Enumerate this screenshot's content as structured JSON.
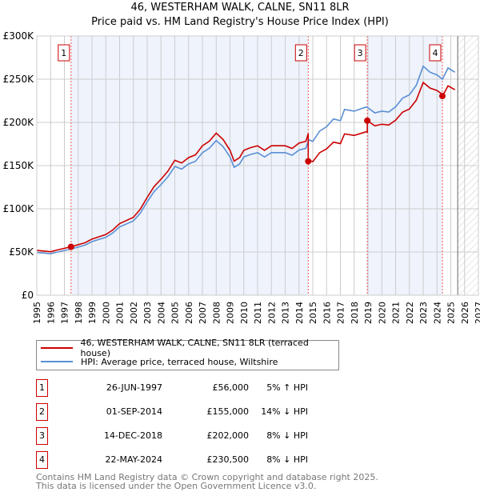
{
  "title": "46, WESTERHAM WALK, CALNE, SN11 8LR",
  "subtitle": "Price paid vs. HM Land Registry's House Price Index (HPI)",
  "chart_data": {
    "type": "line",
    "ylim": [
      0,
      300000
    ],
    "xlim": [
      1995,
      2027
    ],
    "yticks": [
      {
        "v": 0,
        "label": "£0"
      },
      {
        "v": 50000,
        "label": "£50K"
      },
      {
        "v": 100000,
        "label": "£100K"
      },
      {
        "v": 150000,
        "label": "£150K"
      },
      {
        "v": 200000,
        "label": "£200K"
      },
      {
        "v": 250000,
        "label": "£250K"
      },
      {
        "v": 300000,
        "label": "£300K"
      }
    ],
    "xticks": [
      "1995",
      "1996",
      "1997",
      "1998",
      "1999",
      "2000",
      "2001",
      "2002",
      "2003",
      "2004",
      "2005",
      "2006",
      "2007",
      "2008",
      "2009",
      "2010",
      "2011",
      "2012",
      "2013",
      "2014",
      "2015",
      "2016",
      "2017",
      "2018",
      "2019",
      "2020",
      "2021",
      "2022",
      "2023",
      "2024",
      "2025",
      "2026",
      "2027"
    ],
    "forecast_from": 2025.5,
    "colors": {
      "property": "#cc0000",
      "hpi": "#5b8fd4",
      "shade": "#eef3fc"
    },
    "hpi": [
      [
        1995,
        49500
      ],
      [
        1996,
        48000
      ],
      [
        1996.5,
        50000
      ],
      [
        1997.5,
        53500
      ],
      [
        1998.5,
        58000
      ],
      [
        1999,
        62000
      ],
      [
        2000,
        67000
      ],
      [
        2000.5,
        72000
      ],
      [
        2001,
        79000
      ],
      [
        2002,
        86000
      ],
      [
        2002.5,
        95000
      ],
      [
        2003,
        108000
      ],
      [
        2003.5,
        120000
      ],
      [
        2004,
        128000
      ],
      [
        2004.5,
        137000
      ],
      [
        2005,
        149000
      ],
      [
        2005.5,
        146000
      ],
      [
        2006,
        152000
      ],
      [
        2006.5,
        155000
      ],
      [
        2007,
        165000
      ],
      [
        2007.5,
        170000
      ],
      [
        2008,
        179000
      ],
      [
        2008.5,
        172000
      ],
      [
        2009,
        160000
      ],
      [
        2009.3,
        148000
      ],
      [
        2009.7,
        152000
      ],
      [
        2010,
        160000
      ],
      [
        2010.5,
        163000
      ],
      [
        2011,
        165000
      ],
      [
        2011.5,
        160000
      ],
      [
        2012,
        165000
      ],
      [
        2013,
        165000
      ],
      [
        2013.5,
        162000
      ],
      [
        2014,
        168000
      ],
      [
        2014.5,
        170000
      ],
      [
        2014.7,
        180000
      ],
      [
        2015,
        178000
      ],
      [
        2015.5,
        190000
      ],
      [
        2016,
        195000
      ],
      [
        2016.5,
        204000
      ],
      [
        2017,
        202000
      ],
      [
        2017.3,
        215000
      ],
      [
        2018,
        213000
      ],
      [
        2018.9,
        218000
      ],
      [
        2019.5,
        211000
      ],
      [
        2020,
        213000
      ],
      [
        2020.5,
        212000
      ],
      [
        2021,
        218000
      ],
      [
        2021.5,
        228000
      ],
      [
        2022,
        232000
      ],
      [
        2022.5,
        243000
      ],
      [
        2023,
        265000
      ],
      [
        2023.5,
        258000
      ],
      [
        2024,
        255000
      ],
      [
        2024.4,
        250000
      ],
      [
        2024.8,
        263000
      ],
      [
        2025.3,
        258000
      ]
    ],
    "sales": [
      {
        "id": "1",
        "t": 1997.48,
        "price": 56000
      },
      {
        "id": "2",
        "t": 2014.67,
        "price": 155000
      },
      {
        "id": "3",
        "t": 2018.95,
        "price": 202000
      },
      {
        "id": "4",
        "t": 2024.39,
        "price": 230500
      }
    ],
    "legend": {
      "property": "46, WESTERHAM WALK, CALNE, SN11 8LR (terraced house)",
      "hpi": "HPI: Average price, terraced house, Wiltshire"
    }
  },
  "transactions": [
    {
      "num": "1",
      "date": "26-JUN-1997",
      "price": "£56,000",
      "hpi": "5% ↑ HPI"
    },
    {
      "num": "2",
      "date": "01-SEP-2014",
      "price": "£155,000",
      "hpi": "14% ↓ HPI"
    },
    {
      "num": "3",
      "date": "14-DEC-2018",
      "price": "£202,000",
      "hpi": "8% ↓ HPI"
    },
    {
      "num": "4",
      "date": "22-MAY-2024",
      "price": "£230,500",
      "hpi": "8% ↓ HPI"
    }
  ],
  "footer": [
    "Contains HM Land Registry data © Crown copyright and database right 2025.",
    "This data is licensed under the Open Government Licence v3.0."
  ]
}
